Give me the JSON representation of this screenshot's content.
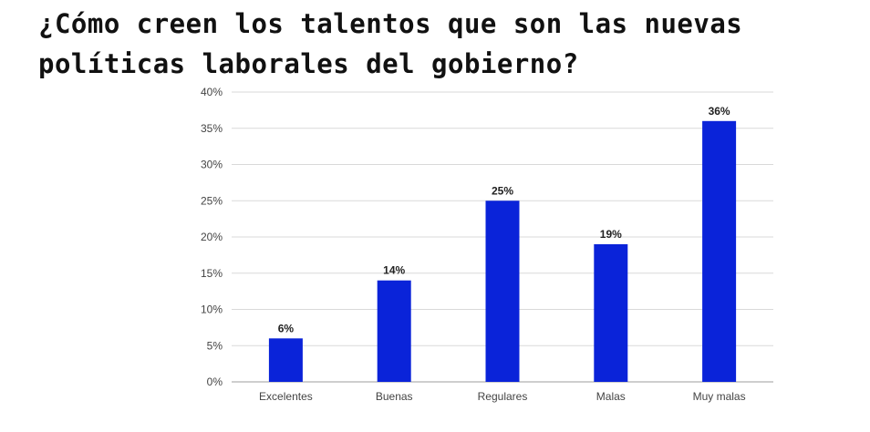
{
  "chart_data": {
    "type": "bar",
    "title": "¿Cómo creen los talentos que son las nuevas políticas laborales del gobierno?",
    "categories": [
      "Excelentes",
      "Buenas",
      "Regulares",
      "Malas",
      "Muy malas"
    ],
    "values": [
      6,
      14,
      25,
      19,
      36
    ],
    "data_labels": [
      "6%",
      "14%",
      "25%",
      "19%",
      "36%"
    ],
    "y_ticks": [
      "0%",
      "5%",
      "10%",
      "15%",
      "20%",
      "25%",
      "30%",
      "35%",
      "40%"
    ],
    "ylim": [
      0,
      40
    ],
    "xlabel": "",
    "ylabel": "",
    "grid": true,
    "legend": "none",
    "bar_color": "#0a23d9",
    "grid_color": "#d9d9d9"
  }
}
